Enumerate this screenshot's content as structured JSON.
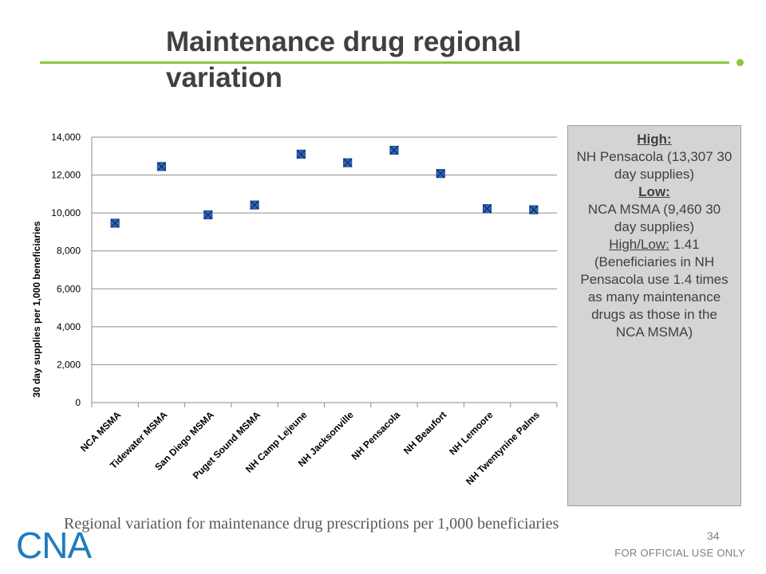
{
  "slide": {
    "title": "Maintenance drug regional variation",
    "caption": "Regional variation for maintenance drug prescriptions per 1,000 beneficiaries",
    "page_number": "34",
    "footer": "FOR OFFICIAL USE ONLY",
    "logo_text": "CNA",
    "accent_color": "#8dc63f",
    "logo_color": "#1f7bbf"
  },
  "sidebar": {
    "high_label": "High:",
    "high_text": "NH Pensacola (13,307 30 day supplies)",
    "low_label": "Low:",
    "low_text": "NCA MSMA (9,460 30 day supplies)",
    "ratio_label": "High/Low:",
    "ratio_value": " 1.41",
    "ratio_note": "(Beneficiaries in NH Pensacola use 1.4 times as many maintenance drugs as those in the NCA MSMA)"
  },
  "chart_data": {
    "type": "scatter",
    "xlabel": "",
    "ylabel": "30 day supplies per 1,000 beneficiaries",
    "ylim": [
      0,
      14000
    ],
    "yticks": [
      0,
      2000,
      4000,
      6000,
      8000,
      10000,
      12000,
      14000
    ],
    "ytick_labels": [
      "0",
      "2,000",
      "4,000",
      "6,000",
      "8,000",
      "10,000",
      "12,000",
      "14,000"
    ],
    "grid": true,
    "marker_color": "#1f4e99",
    "categories": [
      "NCA MSMA",
      "Tidewater MSMA",
      "San Diego MSMA",
      "Puget Sound MSMA",
      "NH Camp Lejeune",
      "NH Jacksonville",
      "NH Pensacola",
      "NH Beaufort",
      "NH Lemoore",
      "NH Twentynine Palms"
    ],
    "values": [
      9460,
      12450,
      9900,
      10420,
      13100,
      12650,
      13307,
      12080,
      10230,
      10170
    ]
  }
}
